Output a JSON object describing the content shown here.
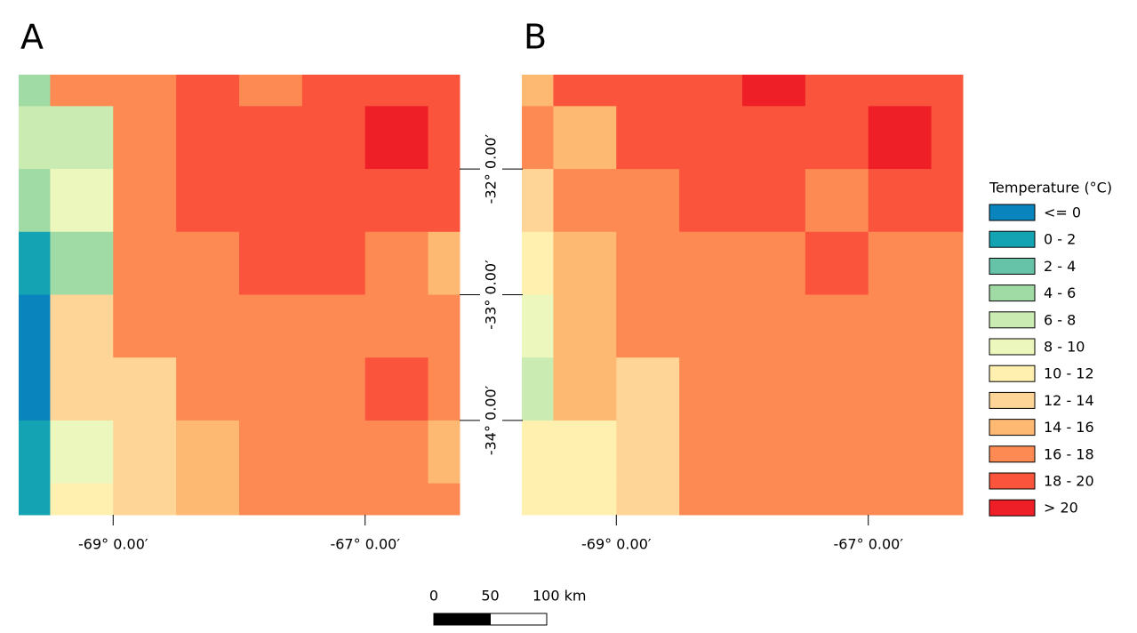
{
  "panels": [
    {
      "label": "A",
      "grid": [
        [
          3,
          9,
          9,
          10,
          9,
          10,
          10,
          10
        ],
        [
          4,
          4,
          9,
          10,
          10,
          10,
          11,
          10
        ],
        [
          3,
          5,
          9,
          10,
          10,
          10,
          10,
          10
        ],
        [
          1,
          3,
          9,
          9,
          10,
          10,
          9,
          8
        ],
        [
          0,
          7,
          9,
          9,
          9,
          9,
          9,
          9
        ],
        [
          0,
          7,
          7,
          9,
          9,
          9,
          10,
          9
        ],
        [
          1,
          5,
          7,
          8,
          9,
          9,
          9,
          8
        ],
        [
          1,
          6,
          7,
          8,
          9,
          9,
          9,
          9
        ]
      ]
    },
    {
      "label": "B",
      "grid": [
        [
          8,
          10,
          10,
          10,
          11,
          10,
          10,
          10
        ],
        [
          9,
          8,
          10,
          10,
          10,
          10,
          11,
          10
        ],
        [
          7,
          9,
          9,
          10,
          10,
          9,
          10,
          10
        ],
        [
          6,
          8,
          9,
          9,
          9,
          10,
          9,
          9
        ],
        [
          5,
          8,
          9,
          9,
          9,
          9,
          9,
          9
        ],
        [
          4,
          8,
          7,
          9,
          9,
          9,
          9,
          9
        ],
        [
          6,
          6,
          7,
          9,
          9,
          9,
          9,
          9
        ],
        [
          6,
          6,
          7,
          9,
          9,
          9,
          9,
          9
        ]
      ]
    }
  ],
  "xlim": [
    -69.75,
    -66.25
  ],
  "ylim": [
    -34.75,
    -31.25
  ],
  "xticks": [
    {
      "value": -69,
      "label": "-69° 0.00′"
    },
    {
      "value": -67,
      "label": "-67° 0.00′"
    }
  ],
  "yticks": [
    {
      "value": -32,
      "label": "-32° 0.00′"
    },
    {
      "value": -33,
      "label": "-33° 0.00′"
    },
    {
      "value": -34,
      "label": "-34° 0.00′"
    }
  ],
  "legend": {
    "title": "Temperature (°C)",
    "classes": [
      {
        "label": "<= 0",
        "color": "#0a84bd"
      },
      {
        "label": "0 - 2",
        "color": "#14a3b2"
      },
      {
        "label": "2 - 4",
        "color": "#66c3a8"
      },
      {
        "label": "4 - 6",
        "color": "#a0daa4"
      },
      {
        "label": "6 - 8",
        "color": "#caebb2"
      },
      {
        "label": "8 - 10",
        "color": "#ecf7bd"
      },
      {
        "label": "10 - 12",
        "color": "#fff0b0"
      },
      {
        "label": "12 - 14",
        "color": "#fed596"
      },
      {
        "label": "14 - 16",
        "color": "#fdb872"
      },
      {
        "label": "16 - 18",
        "color": "#fd8a52"
      },
      {
        "label": "18 - 20",
        "color": "#fa543d"
      },
      {
        "label": "> 20",
        "color": "#ef1f28"
      }
    ]
  },
  "scale_bar": [
    {
      "value": 0,
      "label": "0"
    },
    {
      "value": 50,
      "label": "50"
    },
    {
      "value": 100,
      "label": "100 km"
    }
  ]
}
